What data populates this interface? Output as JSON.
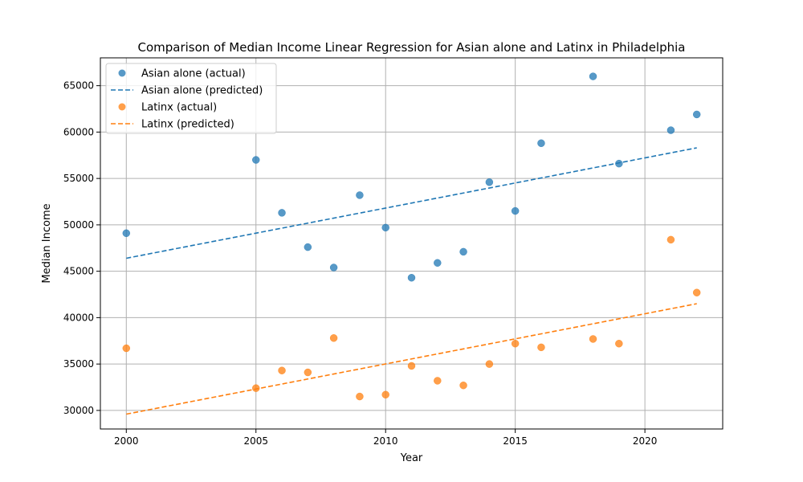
{
  "chart_data": {
    "type": "scatter",
    "title": "Comparison of Median Income Linear Regression for Asian alone and Latinx in Philadelphia",
    "xlabel": "Year",
    "ylabel": "Median Income",
    "xlim": [
      1999.0,
      2023.0
    ],
    "ylim": [
      28000,
      68000
    ],
    "xticks": [
      2000,
      2005,
      2010,
      2015,
      2020
    ],
    "yticks": [
      30000,
      35000,
      40000,
      45000,
      50000,
      55000,
      60000,
      65000
    ],
    "grid": true,
    "legend_position": "top-left",
    "series": [
      {
        "name": "Asian alone (actual)",
        "kind": "scatter",
        "color": "#1f77b4",
        "points": [
          [
            2000,
            49100
          ],
          [
            2005,
            57000
          ],
          [
            2006,
            51300
          ],
          [
            2007,
            47600
          ],
          [
            2008,
            45400
          ],
          [
            2009,
            53200
          ],
          [
            2010,
            49700
          ],
          [
            2011,
            44300
          ],
          [
            2012,
            45900
          ],
          [
            2013,
            47100
          ],
          [
            2014,
            54600
          ],
          [
            2015,
            51500
          ],
          [
            2016,
            58800
          ],
          [
            2018,
            66000
          ],
          [
            2019,
            56600
          ],
          [
            2021,
            60200
          ],
          [
            2022,
            61900
          ]
        ]
      },
      {
        "name": "Asian alone (predicted)",
        "kind": "line",
        "dashed": true,
        "color": "#1f77b4",
        "points": [
          [
            2000,
            46400
          ],
          [
            2022,
            58300
          ]
        ]
      },
      {
        "name": "Latinx (actual)",
        "kind": "scatter",
        "color": "#ff7f0e",
        "points": [
          [
            2000,
            36700
          ],
          [
            2005,
            32400
          ],
          [
            2006,
            34300
          ],
          [
            2007,
            34100
          ],
          [
            2008,
            37800
          ],
          [
            2009,
            31500
          ],
          [
            2010,
            31700
          ],
          [
            2011,
            34800
          ],
          [
            2012,
            33200
          ],
          [
            2013,
            32700
          ],
          [
            2014,
            35000
          ],
          [
            2015,
            37200
          ],
          [
            2016,
            36800
          ],
          [
            2018,
            37700
          ],
          [
            2019,
            37200
          ],
          [
            2021,
            48400
          ],
          [
            2022,
            42700
          ]
        ]
      },
      {
        "name": "Latinx (predicted)",
        "kind": "line",
        "dashed": true,
        "color": "#ff7f0e",
        "points": [
          [
            2000,
            29600
          ],
          [
            2022,
            41500
          ]
        ]
      }
    ]
  }
}
